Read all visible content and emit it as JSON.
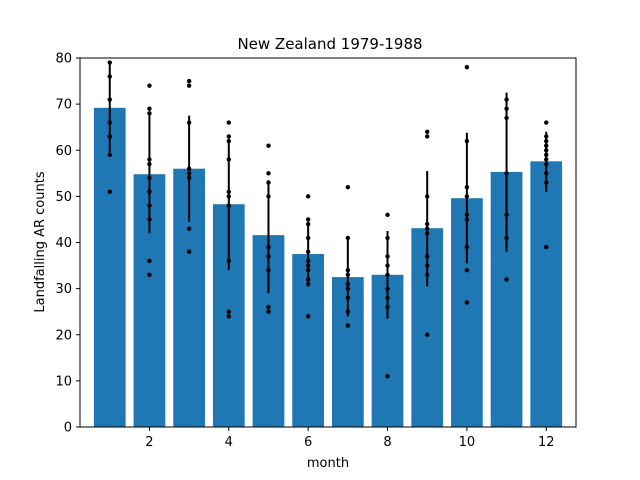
{
  "chart_data": {
    "type": "bar",
    "title": "New Zealand 1979-1988",
    "xlabel": "month",
    "ylabel": "Landfalling AR counts",
    "xlim": [
      0.25,
      12.75
    ],
    "ylim": [
      0,
      80
    ],
    "xticks": [
      2,
      4,
      6,
      8,
      10,
      12
    ],
    "yticks": [
      0,
      10,
      20,
      30,
      40,
      50,
      60,
      70,
      80
    ],
    "grid": false,
    "bar_color": "#1f77b4",
    "errorbar_color": "#000000",
    "point_color": "#000000",
    "categories": [
      1,
      2,
      3,
      4,
      5,
      6,
      7,
      8,
      9,
      10,
      11,
      12
    ],
    "values": [
      69.2,
      54.8,
      56.0,
      48.3,
      41.6,
      37.5,
      32.5,
      33.0,
      43.1,
      49.6,
      55.3,
      57.6
    ],
    "error": [
      [
        59.5,
        79.0
      ],
      [
        42.0,
        68.0
      ],
      [
        44.5,
        67.5
      ],
      [
        34.0,
        62.5
      ],
      [
        29.0,
        53.5
      ],
      [
        30.5,
        44.5
      ],
      [
        24.0,
        41.0
      ],
      [
        23.5,
        42.5
      ],
      [
        30.5,
        55.5
      ],
      [
        35.5,
        63.8
      ],
      [
        38.0,
        72.5
      ],
      [
        51.0,
        64.0
      ]
    ],
    "points": [
      [
        51,
        59,
        63,
        63,
        66,
        71,
        76,
        79
      ],
      [
        33,
        36,
        45,
        48,
        51,
        54,
        57,
        58,
        68,
        69,
        74
      ],
      [
        38,
        43,
        54,
        55,
        56,
        66,
        74,
        75
      ],
      [
        24,
        25,
        36,
        48,
        50,
        51,
        58,
        62,
        63,
        66
      ],
      [
        25,
        26,
        34,
        37,
        39,
        50,
        53,
        55,
        61
      ],
      [
        24,
        31,
        32,
        34,
        35,
        36,
        38,
        41,
        44,
        45,
        50
      ],
      [
        22,
        25,
        28,
        30,
        31,
        33,
        34,
        41,
        52
      ],
      [
        11,
        26,
        28,
        30,
        33,
        35,
        37,
        41,
        46
      ],
      [
        20,
        33,
        35,
        37,
        42,
        43,
        44,
        50,
        63,
        64
      ],
      [
        27,
        34,
        39,
        45,
        46,
        50,
        52,
        62,
        78
      ],
      [
        32,
        41,
        46,
        55,
        67,
        69,
        71
      ],
      [
        39,
        53,
        55,
        57,
        58,
        59,
        60,
        61,
        62,
        63,
        66
      ]
    ]
  }
}
